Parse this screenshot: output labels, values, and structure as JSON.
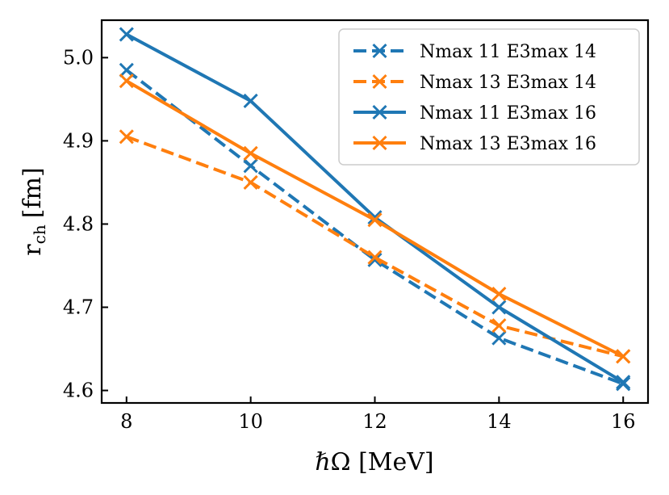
{
  "chart_data": {
    "type": "line",
    "title": "",
    "xlabel": "ℏΩ [MeV]",
    "ylabel_main": "r",
    "ylabel_sub": "ch",
    "ylabel_unit": "[fm]",
    "xlim": [
      7.6,
      16.4
    ],
    "ylim": [
      4.585,
      5.045
    ],
    "x_ticks": [
      8,
      10,
      12,
      14,
      16
    ],
    "x_tick_labels": [
      "8",
      "10",
      "12",
      "14",
      "16"
    ],
    "y_ticks": [
      4.6,
      4.7,
      4.8,
      4.9,
      5.0
    ],
    "y_tick_labels": [
      "4.6",
      "4.7",
      "4.8",
      "4.9",
      "5.0"
    ],
    "grid": false,
    "legend_position": "top-right",
    "x": [
      8,
      10,
      12,
      14,
      16
    ],
    "series": [
      {
        "name": "Nmax 11 E3max 14",
        "color": "#1f77b4",
        "dash": "dashed",
        "values": [
          4.985,
          4.87,
          4.757,
          4.663,
          4.608
        ]
      },
      {
        "name": "Nmax 13 E3max 14",
        "color": "#ff7f0e",
        "dash": "dashed",
        "values": [
          4.905,
          4.85,
          4.76,
          4.678,
          4.641
        ]
      },
      {
        "name": "Nmax 11 E3max 16",
        "color": "#1f77b4",
        "dash": "solid",
        "values": [
          5.028,
          4.948,
          4.808,
          4.7,
          4.61
        ]
      },
      {
        "name": "Nmax 13 E3max 16",
        "color": "#ff7f0e",
        "dash": "solid",
        "values": [
          4.972,
          4.885,
          4.805,
          4.716,
          4.641
        ]
      }
    ]
  }
}
